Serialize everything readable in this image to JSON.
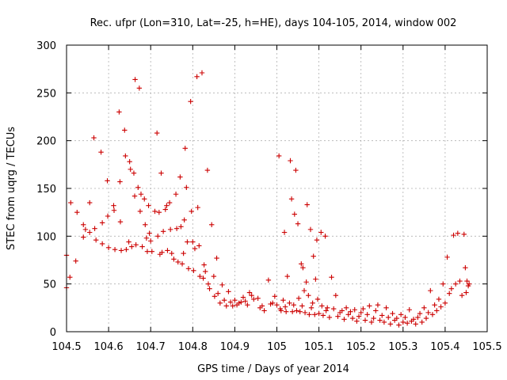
{
  "chart_data": {
    "type": "scatter",
    "title": "Rec. ufpr (Lon=310, Lat=-25, h=HE), days 104-105, 2014, window 002",
    "xlabel": "GPS time / Days of year 2014",
    "ylabel": "STEC from uqrg / TECUs",
    "xlim": [
      104.5,
      105.5
    ],
    "ylim": [
      0,
      300
    ],
    "xticks": [
      104.5,
      104.6,
      104.7,
      104.8,
      104.9,
      105,
      105.1,
      105.2,
      105.3,
      105.4,
      105.5
    ],
    "xtick_labels": [
      "104.5",
      "104.6",
      "104.7",
      "104.8",
      "104.9",
      "105",
      "105.1",
      "105.2",
      "105.3",
      "105.4",
      "105.5"
    ],
    "yticks": [
      0,
      50,
      100,
      150,
      200,
      250,
      300
    ],
    "ytick_labels": [
      "0",
      "50",
      "100",
      "150",
      "200",
      "250",
      "300"
    ],
    "grid": true,
    "marker": "+",
    "color": "#cc0000",
    "series": [
      {
        "name": "STEC",
        "points": [
          [
            104.5,
            80
          ],
          [
            104.5,
            46
          ],
          [
            104.508,
            57
          ],
          [
            104.51,
            135
          ],
          [
            104.522,
            74
          ],
          [
            104.525,
            125
          ],
          [
            104.54,
            112
          ],
          [
            104.54,
            99
          ],
          [
            104.545,
            107
          ],
          [
            104.555,
            104
          ],
          [
            104.555,
            135
          ],
          [
            104.565,
            203
          ],
          [
            104.567,
            108
          ],
          [
            104.57,
            96
          ],
          [
            104.582,
            188
          ],
          [
            104.585,
            114
          ],
          [
            104.585,
            92
          ],
          [
            104.597,
            158
          ],
          [
            104.598,
            121
          ],
          [
            104.6,
            88
          ],
          [
            104.612,
            132
          ],
          [
            104.613,
            127
          ],
          [
            104.615,
            86
          ],
          [
            104.625,
            230
          ],
          [
            104.627,
            157
          ],
          [
            104.628,
            115
          ],
          [
            104.63,
            85
          ],
          [
            104.638,
            211
          ],
          [
            104.64,
            184
          ],
          [
            104.642,
            86
          ],
          [
            104.648,
            94
          ],
          [
            104.65,
            178
          ],
          [
            104.652,
            170
          ],
          [
            104.655,
            89
          ],
          [
            104.66,
            166
          ],
          [
            104.662,
            142
          ],
          [
            104.663,
            264
          ],
          [
            104.665,
            91
          ],
          [
            104.67,
            151
          ],
          [
            104.673,
            255
          ],
          [
            104.675,
            126
          ],
          [
            104.677,
            144
          ],
          [
            104.68,
            89
          ],
          [
            104.685,
            139
          ],
          [
            104.687,
            112
          ],
          [
            104.69,
            98
          ],
          [
            104.692,
            84
          ],
          [
            104.695,
            132
          ],
          [
            104.697,
            103
          ],
          [
            104.7,
            95
          ],
          [
            104.703,
            84
          ],
          [
            104.71,
            126
          ],
          [
            104.715,
            208
          ],
          [
            104.717,
            100
          ],
          [
            104.72,
            125
          ],
          [
            104.722,
            81
          ],
          [
            104.725,
            166
          ],
          [
            104.727,
            83
          ],
          [
            104.73,
            105
          ],
          [
            104.735,
            128
          ],
          [
            104.738,
            132
          ],
          [
            104.74,
            85
          ],
          [
            104.745,
            135
          ],
          [
            104.747,
            107
          ],
          [
            104.75,
            82
          ],
          [
            104.755,
            76
          ],
          [
            104.76,
            144
          ],
          [
            104.762,
            108
          ],
          [
            104.765,
            73
          ],
          [
            104.77,
            162
          ],
          [
            104.772,
            110
          ],
          [
            104.775,
            71
          ],
          [
            104.778,
            82
          ],
          [
            104.78,
            117
          ],
          [
            104.782,
            192
          ],
          [
            104.785,
            151
          ],
          [
            104.787,
            94
          ],
          [
            104.79,
            66
          ],
          [
            104.795,
            241
          ],
          [
            104.797,
            126
          ],
          [
            104.8,
            94
          ],
          [
            104.802,
            64
          ],
          [
            104.805,
            87
          ],
          [
            104.81,
            267
          ],
          [
            104.812,
            130
          ],
          [
            104.815,
            90
          ],
          [
            104.817,
            58
          ],
          [
            104.822,
            271
          ],
          [
            104.825,
            56
          ],
          [
            104.827,
            70
          ],
          [
            104.83,
            63
          ],
          [
            104.835,
            169
          ],
          [
            104.837,
            50
          ],
          [
            104.84,
            45
          ],
          [
            104.845,
            112
          ],
          [
            104.85,
            58
          ],
          [
            104.852,
            37
          ],
          [
            104.857,
            77
          ],
          [
            104.86,
            40
          ],
          [
            104.865,
            30
          ],
          [
            104.87,
            49
          ],
          [
            104.875,
            33
          ],
          [
            104.88,
            27
          ],
          [
            104.885,
            42
          ],
          [
            104.89,
            31
          ],
          [
            104.895,
            27
          ],
          [
            104.9,
            33
          ],
          [
            104.905,
            28
          ],
          [
            104.91,
            30
          ],
          [
            104.915,
            31
          ],
          [
            104.92,
            36
          ],
          [
            104.925,
            32
          ],
          [
            104.93,
            28
          ],
          [
            104.935,
            41
          ],
          [
            104.94,
            38
          ],
          [
            104.945,
            34
          ],
          [
            104.955,
            35
          ],
          [
            104.96,
            25
          ],
          [
            104.965,
            27
          ],
          [
            104.97,
            22
          ],
          [
            104.98,
            54
          ],
          [
            104.985,
            29
          ],
          [
            104.99,
            30
          ],
          [
            104.995,
            37
          ],
          [
            105.0,
            28
          ],
          [
            105.005,
            184
          ],
          [
            105.008,
            24
          ],
          [
            105.01,
            22
          ],
          [
            105.015,
            33
          ],
          [
            105.018,
            104
          ],
          [
            105.02,
            26
          ],
          [
            105.022,
            21
          ],
          [
            105.025,
            58
          ],
          [
            105.03,
            30
          ],
          [
            105.032,
            179
          ],
          [
            105.035,
            139
          ],
          [
            105.037,
            21
          ],
          [
            105.04,
            28
          ],
          [
            105.042,
            123
          ],
          [
            105.045,
            169
          ],
          [
            105.047,
            22
          ],
          [
            105.05,
            113
          ],
          [
            105.052,
            35
          ],
          [
            105.055,
            21
          ],
          [
            105.058,
            71
          ],
          [
            105.06,
            27
          ],
          [
            105.062,
            67
          ],
          [
            105.065,
            43
          ],
          [
            105.067,
            20
          ],
          [
            105.07,
            52
          ],
          [
            105.072,
            133
          ],
          [
            105.075,
            38
          ],
          [
            105.077,
            18
          ],
          [
            105.08,
            107
          ],
          [
            105.082,
            25
          ],
          [
            105.085,
            30
          ],
          [
            105.087,
            79
          ],
          [
            105.09,
            18
          ],
          [
            105.092,
            55
          ],
          [
            105.095,
            96
          ],
          [
            105.097,
            34
          ],
          [
            105.1,
            19
          ],
          [
            105.105,
            104
          ],
          [
            105.107,
            27
          ],
          [
            105.11,
            17
          ],
          [
            105.115,
            100
          ],
          [
            105.117,
            22
          ],
          [
            105.12,
            25
          ],
          [
            105.125,
            15
          ],
          [
            105.13,
            57
          ],
          [
            105.135,
            24
          ],
          [
            105.14,
            38
          ],
          [
            105.145,
            16
          ],
          [
            105.15,
            20
          ],
          [
            105.155,
            22
          ],
          [
            105.16,
            13
          ],
          [
            105.165,
            25
          ],
          [
            105.17,
            18
          ],
          [
            105.175,
            21
          ],
          [
            105.18,
            14
          ],
          [
            105.185,
            23
          ],
          [
            105.19,
            11
          ],
          [
            105.195,
            16
          ],
          [
            105.2,
            20
          ],
          [
            105.205,
            24
          ],
          [
            105.21,
            12
          ],
          [
            105.215,
            18
          ],
          [
            105.22,
            27
          ],
          [
            105.225,
            10
          ],
          [
            105.23,
            14
          ],
          [
            105.235,
            22
          ],
          [
            105.24,
            28
          ],
          [
            105.245,
            12
          ],
          [
            105.25,
            17
          ],
          [
            105.255,
            10
          ],
          [
            105.26,
            25
          ],
          [
            105.265,
            15
          ],
          [
            105.27,
            8
          ],
          [
            105.275,
            19
          ],
          [
            105.28,
            12
          ],
          [
            105.285,
            14
          ],
          [
            105.29,
            7
          ],
          [
            105.295,
            18
          ],
          [
            105.3,
            10
          ],
          [
            105.305,
            15
          ],
          [
            105.31,
            9
          ],
          [
            105.315,
            23
          ],
          [
            105.32,
            11
          ],
          [
            105.325,
            13
          ],
          [
            105.33,
            8
          ],
          [
            105.335,
            15
          ],
          [
            105.34,
            19
          ],
          [
            105.345,
            10
          ],
          [
            105.35,
            25
          ],
          [
            105.355,
            14
          ],
          [
            105.36,
            20
          ],
          [
            105.365,
            43
          ],
          [
            105.37,
            18
          ],
          [
            105.375,
            28
          ],
          [
            105.38,
            22
          ],
          [
            105.385,
            34
          ],
          [
            105.39,
            26
          ],
          [
            105.395,
            50
          ],
          [
            105.4,
            30
          ],
          [
            105.405,
            78
          ],
          [
            105.41,
            40
          ],
          [
            105.415,
            45
          ],
          [
            105.42,
            101
          ],
          [
            105.425,
            50
          ],
          [
            105.43,
            103
          ],
          [
            105.435,
            53
          ],
          [
            105.44,
            38
          ],
          [
            105.445,
            102
          ],
          [
            105.448,
            67
          ],
          [
            105.45,
            41
          ],
          [
            105.452,
            53
          ],
          [
            105.455,
            48
          ],
          [
            105.457,
            50
          ]
        ]
      }
    ]
  }
}
